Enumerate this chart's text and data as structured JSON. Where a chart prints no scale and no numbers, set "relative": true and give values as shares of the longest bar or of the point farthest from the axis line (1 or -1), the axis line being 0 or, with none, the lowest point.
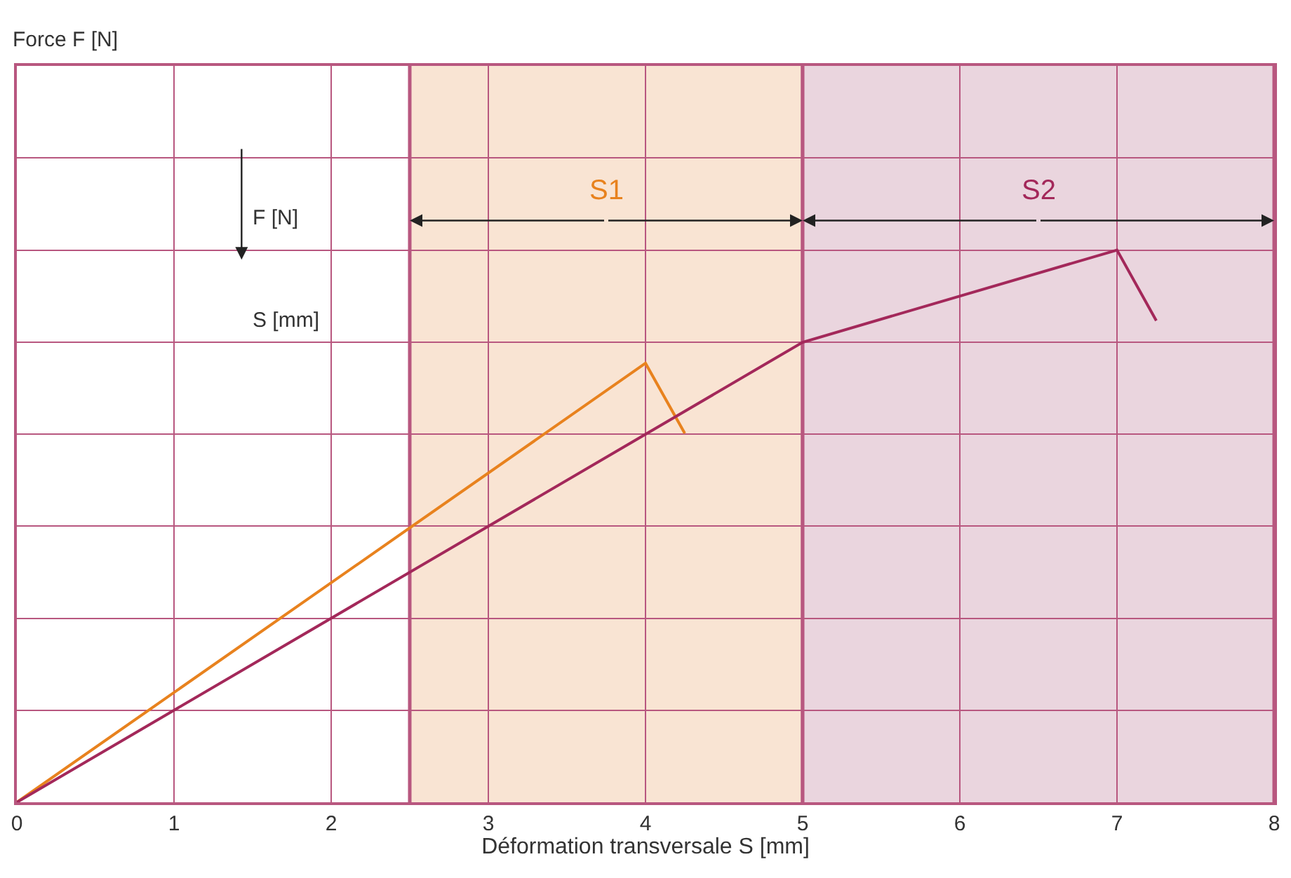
{
  "chart_data": {
    "type": "line",
    "relative": true,
    "xlabel": "Déformation transversale S [mm]",
    "xlim": [
      0,
      8
    ],
    "xticks": [
      0,
      1,
      2,
      3,
      4,
      5,
      6,
      7,
      8
    ],
    "grid": true,
    "marker": "none",
    "line_style": "solid",
    "series": [
      {
        "color": "#e8821e",
        "x": [
          0,
          4,
          4.25
        ],
        "values": [
          0,
          0.795,
          0.668
        ]
      },
      {
        "color": "#a3285a",
        "x": [
          0,
          5,
          7,
          7.25
        ],
        "values": [
          0,
          0.833,
          1,
          0.872
        ]
      }
    ],
    "bands": [
      {
        "axis": "x",
        "from": 2.5,
        "to": 5,
        "label": "S1",
        "color": "#f9e4d3"
      },
      {
        "axis": "x",
        "from": 5,
        "to": 8,
        "label": "S2",
        "color": "#ead5de"
      }
    ],
    "annotations": [
      "Force F [N]",
      "F [N]",
      "S [mm]"
    ]
  }
}
